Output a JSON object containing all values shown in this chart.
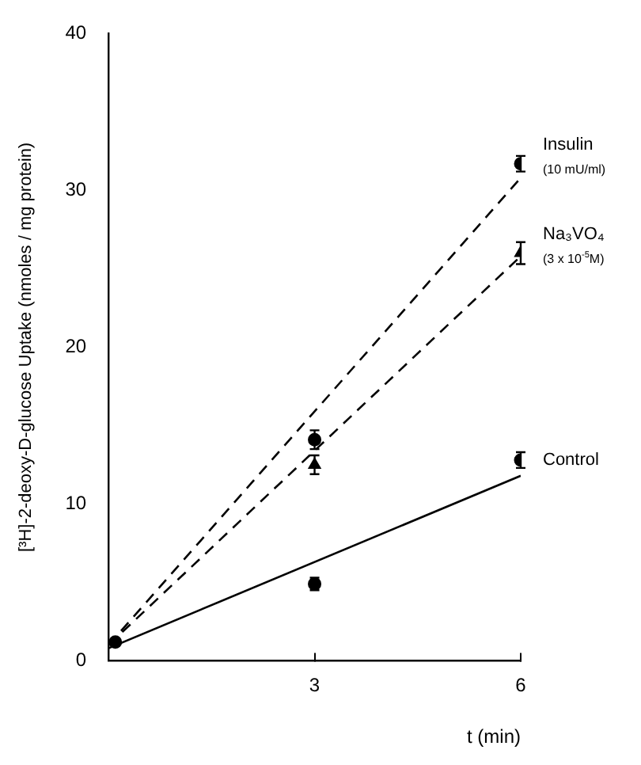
{
  "chart_data": {
    "type": "scatter",
    "xlabel": "t (min)",
    "ylabel": "[³H]-2-deoxy-D-glucose Uptake (nmoles / mg protein)",
    "xlim": [
      0,
      6
    ],
    "xticks": [
      3,
      6
    ],
    "ylim": [
      0,
      40
    ],
    "yticks": [
      0,
      10,
      20,
      30,
      40
    ],
    "grid": false,
    "legend": false,
    "series": [
      {
        "name": "Insulin",
        "marker": "circle",
        "color": "#000000",
        "x": [
          0.1,
          3,
          6
        ],
        "values": [
          1.2,
          14.1,
          31.7
        ],
        "errors": [
          null,
          0.6,
          0.5
        ]
      },
      {
        "name": "Na₃VO₄",
        "marker": "triangle",
        "color": "#000000",
        "x": [
          3,
          6
        ],
        "values": [
          12.5,
          26.0
        ],
        "errors": [
          0.6,
          0.7
        ]
      },
      {
        "name": "Control",
        "marker": "circle",
        "color": "#000000",
        "x": [
          3,
          6
        ],
        "values": [
          4.9,
          12.8
        ],
        "errors": [
          0.4,
          0.5
        ]
      },
      {
        "type": "line",
        "line_style": "dashed",
        "color": "#000000",
        "x": [
          0,
          6
        ],
        "values": [
          1.0,
          30.8
        ]
      },
      {
        "type": "line",
        "line_style": "dashed",
        "color": "#000000",
        "x": [
          0,
          6
        ],
        "values": [
          1.0,
          25.8
        ]
      },
      {
        "type": "line",
        "line_style": "solid",
        "color": "#000000",
        "x": [
          0,
          6
        ],
        "values": [
          0.8,
          11.8
        ]
      }
    ],
    "annotations": [
      {
        "text": "(10 mU/ml)",
        "x": 6,
        "y": 31.7
      },
      {
        "text": "(3 x 10$^{-5}$M)",
        "x": 6,
        "y": 26.0
      }
    ]
  }
}
